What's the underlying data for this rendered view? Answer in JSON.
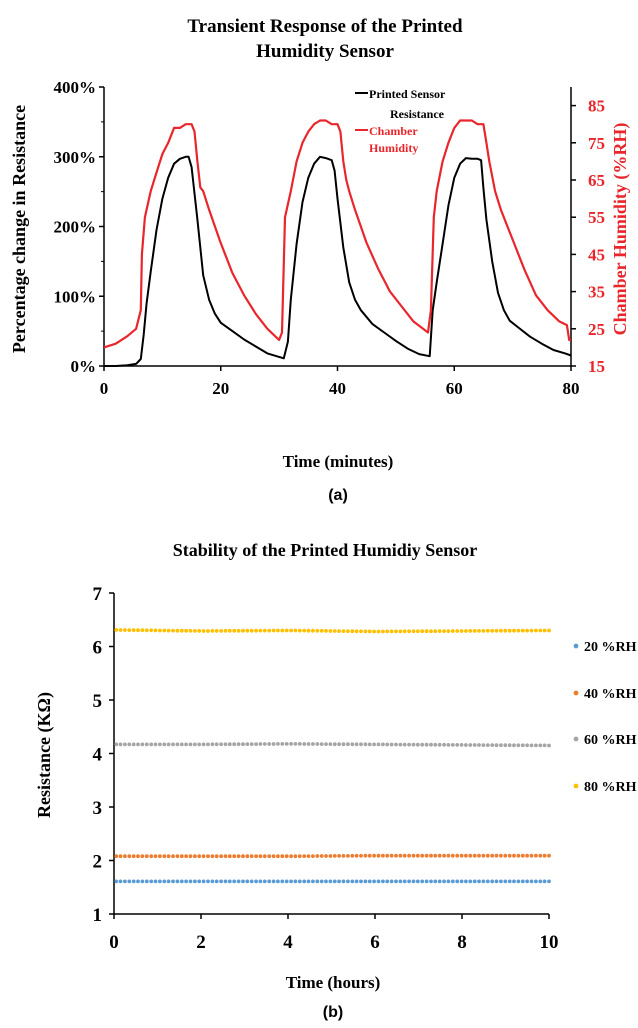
{
  "charts": [
    {
      "type": "line",
      "title": "Transient Response of the Printed Humidity Sensor",
      "title_lines": [
        "Transient Response of the Printed",
        "Humidity Sensor"
      ],
      "panel_label": "(a)",
      "xlabel": "Time (minutes)",
      "ylabel": "Percentage change in Resistance",
      "y2label": "Chamber Humidity (%RH)",
      "xlim": [
        0,
        80
      ],
      "ylim": [
        0,
        400
      ],
      "y2lim": [
        15,
        90
      ],
      "x_ticks": [
        "0",
        "20",
        "40",
        "60",
        "80"
      ],
      "y_ticks": [
        "0%",
        "100%",
        "200%",
        "300%",
        "400%"
      ],
      "y2_ticks": [
        "15",
        "25",
        "35",
        "45",
        "55",
        "65",
        "75",
        "85"
      ],
      "grid": false,
      "legend_position": "top-center",
      "series": [
        {
          "name": "Printed Sensor Resistance",
          "legend_lines": [
            "Printed Sensor",
            "Resistance"
          ],
          "axis": "left",
          "color": "#000000",
          "x": [
            0,
            2,
            4,
            5.5,
            6.3,
            6.8,
            7.3,
            8,
            9,
            10,
            11,
            12,
            13,
            14,
            14.5,
            15,
            16,
            17,
            18,
            19,
            20,
            22,
            24,
            26,
            28,
            30,
            30.8,
            31.5,
            32,
            33,
            34,
            35,
            36,
            37,
            38,
            39,
            39.5,
            40,
            41,
            42,
            43,
            44,
            45,
            46,
            48,
            50,
            52,
            54,
            55.8,
            56.3,
            57,
            58,
            59,
            60,
            61,
            62,
            63,
            64,
            64.6,
            65,
            65.5,
            66.5,
            67.5,
            68.5,
            69.5,
            71,
            73,
            75,
            77,
            79,
            80
          ],
          "y": [
            0,
            0,
            1,
            3,
            10,
            45,
            90,
            135,
            195,
            240,
            270,
            290,
            297,
            300,
            300,
            285,
            210,
            130,
            95,
            75,
            62,
            50,
            38,
            28,
            18,
            13,
            11,
            35,
            95,
            175,
            235,
            270,
            290,
            300,
            298,
            295,
            280,
            240,
            170,
            120,
            95,
            80,
            70,
            60,
            48,
            36,
            25,
            17,
            14,
            80,
            120,
            175,
            230,
            270,
            290,
            298,
            297,
            297,
            295,
            255,
            210,
            150,
            105,
            80,
            65,
            55,
            42,
            32,
            23,
            18,
            15
          ]
        },
        {
          "name": "Chamber Humidity",
          "legend_lines": [
            "Chamber",
            "Humidity"
          ],
          "axis": "right",
          "color": "#e8262c",
          "x": [
            0,
            2,
            4,
            5.5,
            6.3,
            6.5,
            7,
            8,
            9,
            10,
            11,
            12,
            13,
            14,
            15,
            15.5,
            16,
            16.5,
            17,
            18,
            20,
            22,
            24,
            26,
            28,
            30,
            30.5,
            31,
            32,
            33,
            34,
            35,
            36,
            37,
            38,
            39,
            40,
            40.5,
            41,
            41.5,
            42,
            43,
            45,
            47,
            49,
            51,
            53,
            55.5,
            56,
            56.5,
            57,
            58,
            59,
            60,
            61,
            62,
            63,
            64,
            65,
            65.5,
            66,
            66.5,
            67,
            68,
            70,
            72,
            74,
            76,
            78,
            79.3,
            79.7,
            80
          ],
          "y": [
            20,
            21,
            23,
            25,
            30,
            45,
            55,
            62,
            67,
            72,
            75,
            79,
            79,
            80,
            80,
            78,
            70,
            63,
            62,
            57,
            48,
            40,
            34,
            29,
            25,
            22,
            24,
            55,
            62,
            70,
            75,
            78,
            80,
            81,
            81,
            80,
            80,
            78,
            70,
            65,
            62,
            57,
            48,
            41,
            35,
            31,
            27,
            24,
            30,
            55,
            62,
            70,
            75,
            79,
            81,
            81,
            81,
            80,
            80,
            75,
            70,
            66,
            62,
            57,
            49,
            41,
            34,
            30,
            27,
            26,
            22,
            22
          ]
        }
      ]
    },
    {
      "type": "scatter",
      "title": "Stability of the Printed Humidiy Sensor",
      "panel_label": "(b)",
      "xlabel": "Time (hours)",
      "ylabel": "Resistance (KΩ)",
      "xlim": [
        0,
        10
      ],
      "ylim": [
        1,
        7
      ],
      "x_ticks": [
        "0",
        "2",
        "4",
        "6",
        "8",
        "10"
      ],
      "y_ticks": [
        "1",
        "2",
        "3",
        "4",
        "5",
        "6",
        "7"
      ],
      "grid": false,
      "legend_position": "right",
      "series": [
        {
          "name": "20 %RH",
          "color": "#5b9bd5",
          "points": 100,
          "x_range": [
            0.05,
            10
          ],
          "levels": [
            1.61,
            1.61,
            1.61,
            1.61,
            1.61,
            1.61
          ]
        },
        {
          "name": "40 %RH",
          "color": "#ed7d31",
          "points": 100,
          "x_range": [
            0.05,
            10
          ],
          "levels": [
            2.08,
            2.08,
            2.08,
            2.09,
            2.09,
            2.09
          ]
        },
        {
          "name": "60 %RH",
          "color": "#a5a5a5",
          "points": 100,
          "x_range": [
            0.05,
            10
          ],
          "levels": [
            4.17,
            4.17,
            4.18,
            4.17,
            4.16,
            4.15
          ]
        },
        {
          "name": "80 %RH",
          "color": "#ffc000",
          "points": 100,
          "x_range": [
            0.05,
            10
          ],
          "levels": [
            6.31,
            6.29,
            6.3,
            6.28,
            6.29,
            6.3
          ]
        }
      ]
    }
  ]
}
